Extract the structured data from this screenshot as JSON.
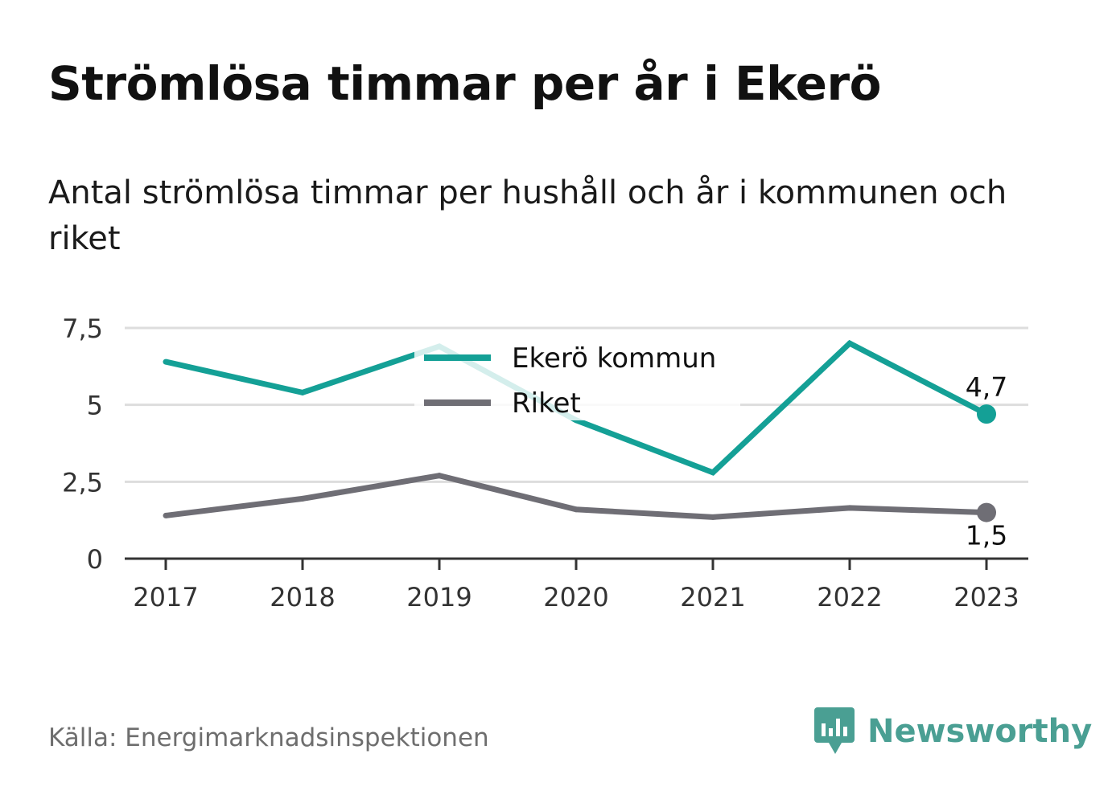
{
  "title": "Strömlösa timmar per år i Ekerö",
  "subtitle": "Antal strömlösa timmar per hushåll och år i kommunen och riket",
  "source": "Källa: Energimarknadsinspektionen",
  "brand": {
    "name": "Newsworthy",
    "icon": "newsworthy-logo-icon",
    "color": "#4a9f93"
  },
  "chart_data": {
    "type": "line",
    "x": [
      "2017",
      "2018",
      "2019",
      "2020",
      "2021",
      "2022",
      "2023"
    ],
    "series": [
      {
        "name": "Ekerö kommun",
        "color": "#14a096",
        "values": [
          6.4,
          5.4,
          6.9,
          4.5,
          2.8,
          7.0,
          4.7
        ],
        "end_label": "4,7"
      },
      {
        "name": "Riket",
        "color": "#6f6e75",
        "values": [
          1.4,
          1.95,
          2.7,
          1.6,
          1.35,
          1.65,
          1.5
        ],
        "end_label": "1,5"
      }
    ],
    "ylim": [
      0,
      7.5
    ],
    "yticks": [
      0,
      2.5,
      5,
      7.5
    ],
    "ytick_labels": [
      "0",
      "2,5",
      "5",
      "7,5"
    ],
    "xlabel": "",
    "ylabel": "",
    "grid": true,
    "legend": "top-center"
  }
}
